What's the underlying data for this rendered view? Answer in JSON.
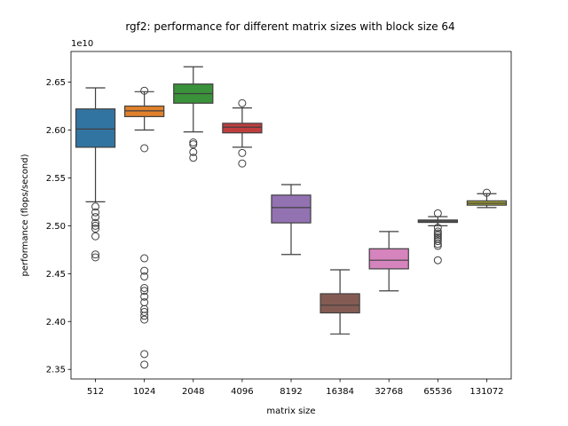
{
  "chart_data": {
    "type": "box",
    "title": "rgf2: performance for different matrix sizes with block size 64",
    "xlabel": "matrix size",
    "ylabel": "performance (flops/second)",
    "y_offset_label": "1e10",
    "y_scale_factor": 10000000000.0,
    "ylim": [
      2.34,
      2.682
    ],
    "yticks": [
      2.35,
      2.4,
      2.45,
      2.5,
      2.55,
      2.6,
      2.65
    ],
    "ytick_labels": [
      "2.35",
      "2.40",
      "2.45",
      "2.50",
      "2.55",
      "2.60",
      "2.65"
    ],
    "grid": false,
    "categories": [
      "512",
      "1024",
      "2048",
      "4096",
      "8192",
      "16384",
      "32768",
      "65536",
      "131072"
    ],
    "boxes": [
      {
        "category": "512",
        "color": "#3274a1",
        "q1": 2.582,
        "median": 2.601,
        "q3": 2.622,
        "whisker_low": 2.525,
        "whisker_high": 2.644,
        "outliers": [
          2.52,
          2.514,
          2.509,
          2.503,
          2.5,
          2.497,
          2.489,
          2.47,
          2.467
        ]
      },
      {
        "category": "1024",
        "color": "#e1812c",
        "q1": 2.614,
        "median": 2.62,
        "q3": 2.625,
        "whisker_low": 2.6,
        "whisker_high": 2.64,
        "outliers": [
          2.641,
          2.581,
          2.466,
          2.453,
          2.447,
          2.435,
          2.432,
          2.426,
          2.42,
          2.413,
          2.41,
          2.406,
          2.402,
          2.366,
          2.355
        ]
      },
      {
        "category": "2048",
        "color": "#3a923a",
        "q1": 2.628,
        "median": 2.638,
        "q3": 2.648,
        "whisker_low": 2.598,
        "whisker_high": 2.666,
        "outliers": [
          2.587,
          2.585,
          2.577,
          2.571
        ]
      },
      {
        "category": "4096",
        "color": "#c03d3e",
        "q1": 2.597,
        "median": 2.603,
        "q3": 2.607,
        "whisker_low": 2.582,
        "whisker_high": 2.623,
        "outliers": [
          2.628,
          2.576,
          2.565
        ]
      },
      {
        "category": "8192",
        "color": "#9372b2",
        "q1": 2.503,
        "median": 2.519,
        "q3": 2.532,
        "whisker_low": 2.47,
        "whisker_high": 2.543,
        "outliers": []
      },
      {
        "category": "16384",
        "color": "#845b53",
        "q1": 2.409,
        "median": 2.417,
        "q3": 2.429,
        "whisker_low": 2.387,
        "whisker_high": 2.454,
        "outliers": []
      },
      {
        "category": "32768",
        "color": "#d684bd",
        "q1": 2.455,
        "median": 2.464,
        "q3": 2.476,
        "whisker_low": 2.432,
        "whisker_high": 2.494,
        "outliers": []
      },
      {
        "category": "65536",
        "color": "#7f7f7f",
        "q1": 2.5035,
        "median": 2.5048,
        "q3": 2.506,
        "whisker_low": 2.5,
        "whisker_high": 2.5095,
        "outliers": [
          2.513,
          2.498,
          2.494,
          2.492,
          2.49,
          2.488,
          2.486,
          2.484,
          2.481,
          2.479,
          2.464
        ]
      },
      {
        "category": "131072",
        "color": "#a9aa35",
        "q1": 2.5215,
        "median": 2.5235,
        "q3": 2.526,
        "whisker_low": 2.519,
        "whisker_high": 2.5335,
        "outliers": [
          2.5345
        ]
      }
    ]
  }
}
